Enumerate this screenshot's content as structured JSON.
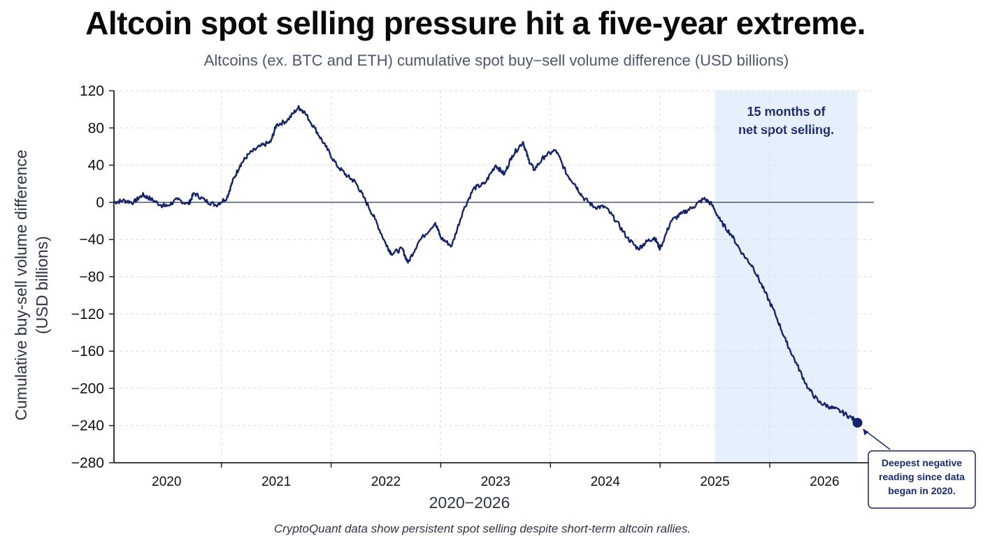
{
  "title": "Altcoin spot selling pressure hit a five-year extreme.",
  "subtitle": "Altcoins (ex. BTC and ETH) cumulative spot buy−sell volume difference (USD billions)",
  "caption": "CryptoQuant data show persistent spot selling despite short-term altcoin rallies.",
  "colors": {
    "line": "#15236b",
    "shade": "#e6f0fd",
    "zero_line": "#23345e",
    "grid": "#d9dde6"
  },
  "chart_data": {
    "type": "line",
    "ylabel": [
      "Cumulative buy-sell volume difference",
      "(USD billions)"
    ],
    "xlabel": "2020−2026",
    "ylim": [
      -280,
      120
    ],
    "y_ticks": [
      120,
      80,
      40,
      0,
      -40,
      -80,
      -120,
      -160,
      -200,
      -240,
      -280
    ],
    "y_tick_labels": [
      "120",
      "80",
      "40",
      "0",
      "−40",
      "−80",
      "−120",
      "−160",
      "−200",
      "−240",
      "−280"
    ],
    "xlim": [
      2019.52,
      2026.45
    ],
    "x_ticks": [
      2020,
      2021,
      2022,
      2023,
      2024,
      2025,
      2026
    ],
    "x_tick_labels": [
      "2020",
      "2021",
      "2022",
      "2023",
      "2024",
      "2025",
      "2026"
    ],
    "grid": true,
    "shaded_region": {
      "x_start": 2025.0,
      "x_end": 2026.3,
      "label": [
        "15 months of",
        "net spot selling."
      ]
    },
    "annotation": {
      "x": 2026.3,
      "y": -237,
      "text": [
        "Deepest negative",
        "reading since data",
        "began in 2020."
      ]
    },
    "series": [
      {
        "x": [
          2019.52,
          2019.6,
          2019.7,
          2019.78,
          2019.85,
          2019.95,
          2020.0,
          2020.1,
          2020.2,
          2020.25,
          2020.35,
          2020.45,
          2020.55,
          2020.6,
          2020.67,
          2020.75,
          2020.85,
          2020.95,
          2021.0,
          2021.1,
          2021.2,
          2021.25,
          2021.35,
          2021.45,
          2021.55,
          2021.65,
          2021.72,
          2021.8,
          2021.9,
          2022.0,
          2022.05,
          2022.15,
          2022.2,
          2022.3,
          2022.45,
          2022.5,
          2022.6,
          2022.7,
          2022.8,
          2022.9,
          2023.0,
          2023.08,
          2023.15,
          2023.25,
          2023.3,
          2023.35,
          2023.45,
          2023.55,
          2023.65,
          2023.72,
          2023.8,
          2023.9,
          2024.0,
          2024.1,
          2024.2,
          2024.3,
          2024.38,
          2024.45,
          2024.5,
          2024.6,
          2024.7,
          2024.8,
          2024.9,
          2024.97,
          2025.05,
          2025.15,
          2025.25,
          2025.35,
          2025.45,
          2025.55,
          2025.65,
          2025.75,
          2025.85,
          2025.95,
          2026.05,
          2026.15,
          2026.25,
          2026.3
        ],
        "y": [
          0,
          2,
          0,
          8,
          4,
          -3,
          -4,
          3,
          -2,
          10,
          2,
          -3,
          5,
          22,
          40,
          52,
          60,
          65,
          83,
          88,
          102,
          98,
          80,
          60,
          40,
          28,
          22,
          5,
          -18,
          -45,
          -55,
          -50,
          -65,
          -42,
          -22,
          -38,
          -47,
          -10,
          15,
          20,
          40,
          30,
          50,
          65,
          46,
          35,
          50,
          56,
          30,
          20,
          5,
          -5,
          -5,
          -20,
          -38,
          -50,
          -42,
          -38,
          -50,
          -20,
          -12,
          -5,
          4,
          -2,
          -20,
          -35,
          -55,
          -70,
          -95,
          -120,
          -150,
          -175,
          -200,
          -215,
          -220,
          -225,
          -232,
          -237
        ]
      }
    ]
  }
}
